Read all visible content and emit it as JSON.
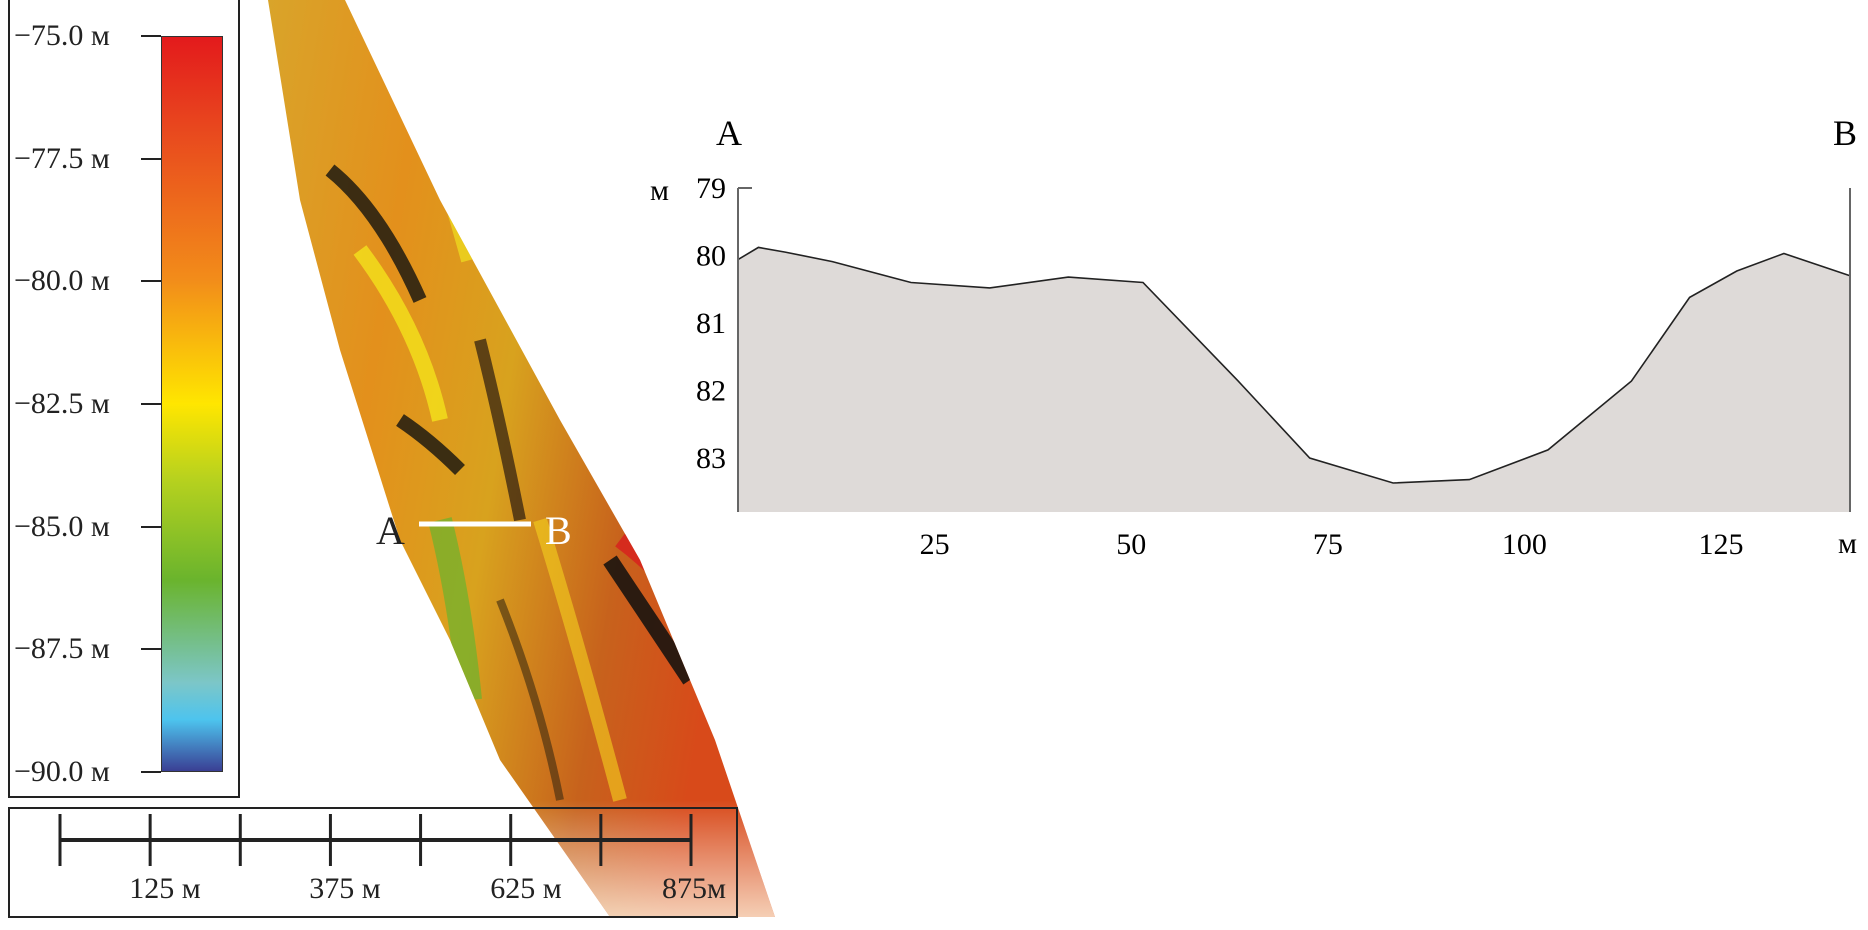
{
  "map": {
    "legend": {
      "labels": [
        "−75.0 м",
        "−77.5 м",
        "−80.0 м",
        "−82.5 м",
        "−85.0 м",
        "−87.5 м",
        "−90.0 м"
      ],
      "values": [
        -75.0,
        -77.5,
        -80.0,
        -82.5,
        -85.0,
        -87.5,
        -90.0
      ],
      "colors": [
        "#e31a1c",
        "#e8461e",
        "#f28c1a",
        "#ffe600",
        "#b8d21e",
        "#6ab42d",
        "#7cc6c8",
        "#4dc4ee",
        "#3a3f94"
      ]
    },
    "scale_bar": {
      "labels": [
        "125 м",
        "375 м",
        "625 м",
        "875м"
      ]
    },
    "section": {
      "start_label": "A",
      "end_label": "B"
    }
  },
  "chart_data": {
    "type": "area",
    "start_label": "A",
    "end_label": "B",
    "xlabel": "м",
    "ylabel": "м",
    "x_ticks": [
      25,
      50,
      75,
      100,
      125
    ],
    "y_ticks": [
      79,
      80,
      81,
      82,
      83
    ],
    "xlim": [
      0,
      141.4
    ],
    "ylim": [
      83.8,
      79
    ],
    "y_inverted": true,
    "fill_color": "#dedad8",
    "x": [
      0,
      2.6,
      6,
      12,
      22,
      32,
      42,
      51.5,
      63.6,
      72.7,
      83.3,
      93,
      103,
      113.6,
      121,
      127,
      133,
      141.4
    ],
    "y": [
      80.06,
      79.88,
      79.95,
      80.09,
      80.4,
      80.48,
      80.32,
      80.4,
      81.86,
      83.0,
      83.37,
      83.32,
      82.88,
      81.86,
      80.62,
      80.23,
      79.97,
      80.3
    ]
  }
}
